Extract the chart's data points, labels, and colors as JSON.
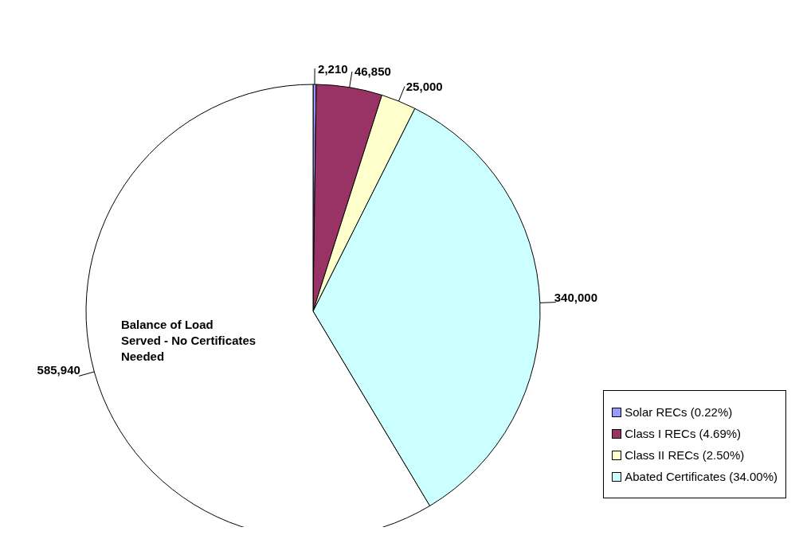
{
  "chart_data": {
    "type": "pie",
    "categories": [
      "Solar RECs (0.22%)",
      "Class I RECs (4.69%)",
      "Class II RECs (2.50%)",
      "Abated Certificates (34.00%)",
      null
    ],
    "values": [
      2210,
      46850,
      25000,
      340000,
      585940
    ],
    "value_labels": [
      "2,210",
      "46,850",
      "25,000",
      "340,000",
      "585,940"
    ],
    "colors": [
      "#9999ff",
      "#993366",
      "#ffffcc",
      "#ccffff",
      "#ffffff"
    ],
    "annotations": [
      "Balance of Load Served -  No Certificates Needed"
    ],
    "legend": "bottom right"
  }
}
